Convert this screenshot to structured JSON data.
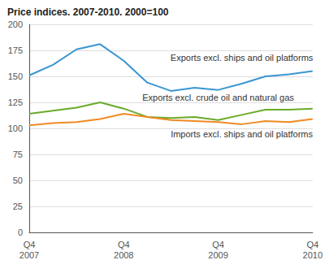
{
  "chart_data": {
    "type": "line",
    "title": "Price indices. 2007-2010. 2000=100",
    "categories": [
      "Q4\n2007",
      null,
      null,
      null,
      "Q4\n2008",
      null,
      null,
      null,
      "Q4\n2009",
      null,
      null,
      null,
      "Q4\n2010"
    ],
    "series": [
      {
        "name": "Exports excl. ships and oil platforms",
        "color": "#3a95d2",
        "values": [
          151,
          161,
          176,
          181,
          165,
          144,
          136,
          139,
          137,
          143,
          150,
          152,
          155
        ]
      },
      {
        "name": "Exports excl. crude oil and natural gas",
        "color": "#6aaa2a",
        "values": [
          114,
          117,
          120,
          125,
          119,
          111,
          110,
          111,
          108,
          113,
          118,
          118,
          119
        ]
      },
      {
        "name": "Imports excl. ships and oil platforms",
        "color": "#f08a24",
        "values": [
          103,
          105,
          106,
          109,
          114,
          111,
          108,
          107,
          106,
          104,
          107,
          106,
          109
        ]
      }
    ],
    "ylim": [
      0,
      200
    ],
    "yticks": [
      0,
      25,
      50,
      75,
      100,
      125,
      150,
      175,
      200
    ],
    "grid": true
  }
}
